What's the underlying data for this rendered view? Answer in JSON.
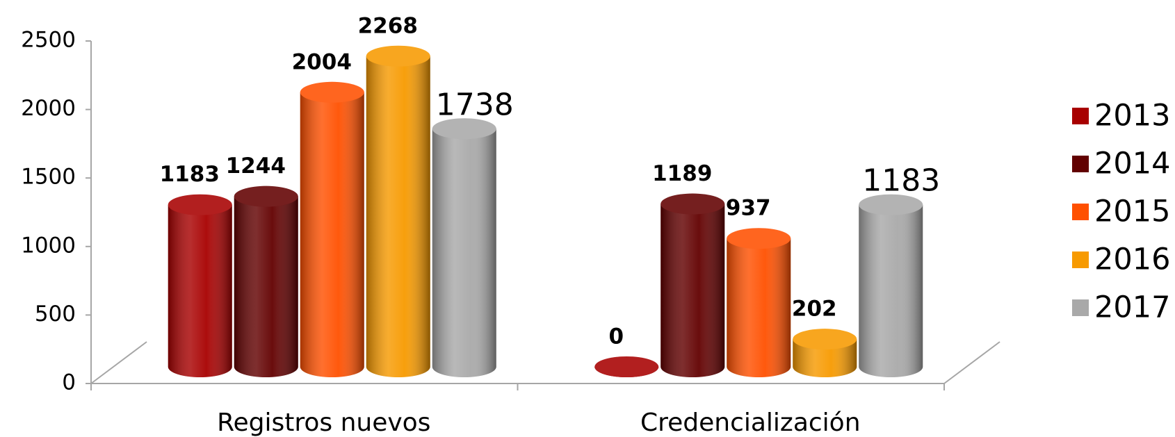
{
  "chart_data": {
    "type": "bar3d",
    "categories": [
      "Registros nuevos",
      "Credencialización"
    ],
    "series": [
      {
        "name": "2013",
        "color": "#a80000",
        "values": [
          1183,
          0
        ]
      },
      {
        "name": "2014",
        "color": "#620000",
        "values": [
          1244,
          1189
        ]
      },
      {
        "name": "2015",
        "color": "#ff5000",
        "values": [
          2004,
          937
        ]
      },
      {
        "name": "2016",
        "color": "#f79a00",
        "values": [
          2268,
          202
        ]
      },
      {
        "name": "2017",
        "color": "#a9a9a9",
        "values": [
          1738,
          1183
        ]
      }
    ],
    "ylim": [
      0,
      2500
    ],
    "yticks": [
      0,
      500,
      1000,
      1500,
      2000,
      2500
    ],
    "legend": "right"
  }
}
